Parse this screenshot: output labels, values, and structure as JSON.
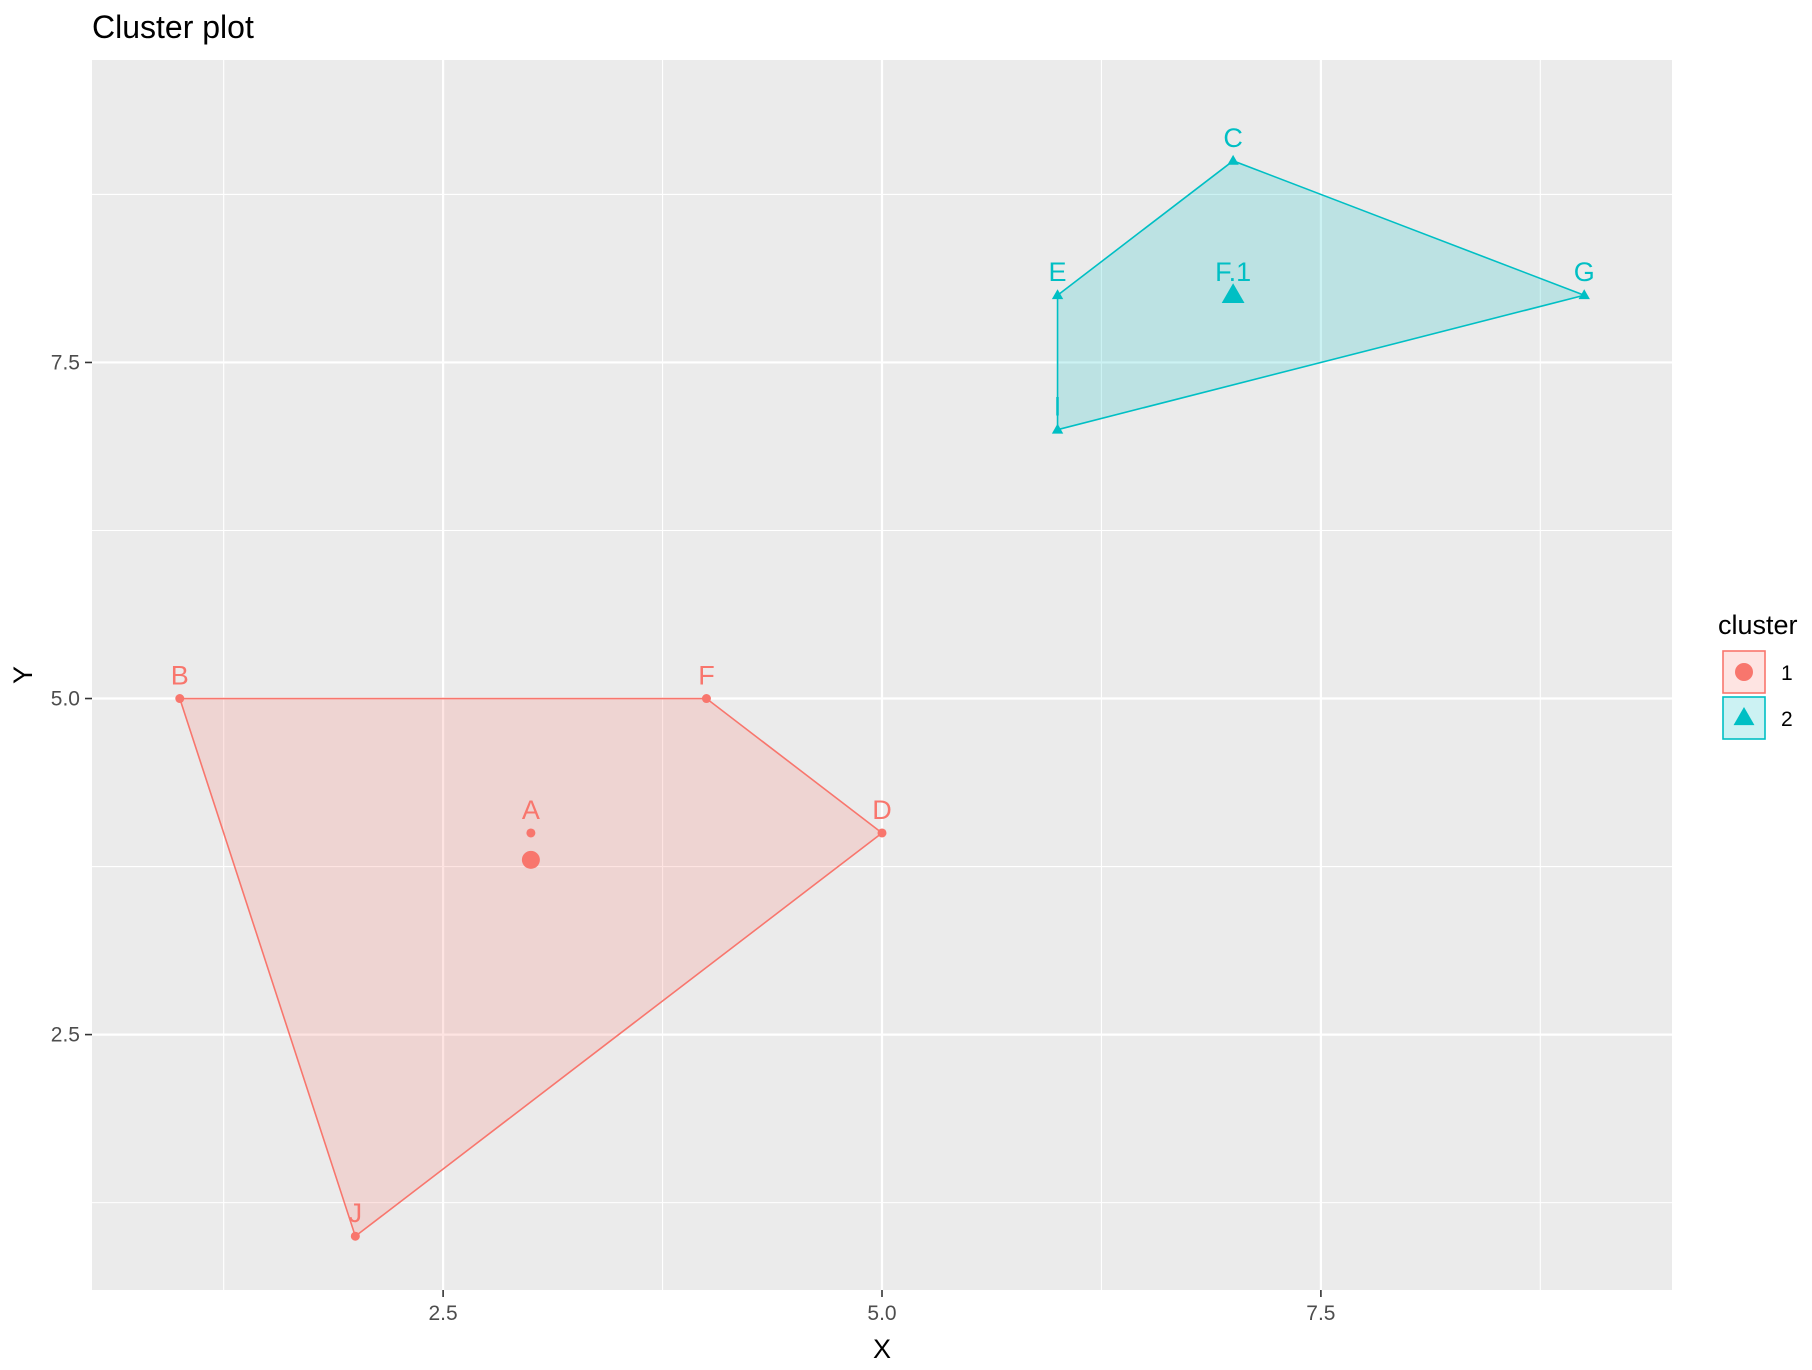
{
  "chart_data": {
    "type": "scatter",
    "title": "Cluster plot",
    "xlabel": "X",
    "ylabel": "Y",
    "xlim": [
      0.5,
      9.5
    ],
    "ylim": [
      0.6,
      9.75
    ],
    "x_ticks": [
      2.5,
      5.0,
      7.5
    ],
    "x_tick_labels": [
      "2.5",
      "5.0",
      "7.5"
    ],
    "x_minor": [
      1.25,
      3.75,
      6.25,
      8.75
    ],
    "y_ticks": [
      2.5,
      5.0,
      7.5
    ],
    "y_tick_labels": [
      "2.5",
      "5.0",
      "7.5"
    ],
    "y_minor": [
      1.25,
      3.75,
      6.25,
      8.75
    ],
    "grid": true,
    "legend": {
      "title": "cluster",
      "position": "right",
      "entries": [
        {
          "label": "1",
          "color": "#F8766D",
          "shape": "circle"
        },
        {
          "label": "2",
          "color": "#00BFC4",
          "shape": "triangle"
        }
      ]
    },
    "series": [
      {
        "cluster": "1",
        "color": "#F8766D",
        "shape": "circle",
        "points": [
          {
            "label": "A",
            "x": 3,
            "y": 4
          },
          {
            "label": "B",
            "x": 1,
            "y": 5
          },
          {
            "label": "D",
            "x": 5,
            "y": 4
          },
          {
            "label": "F",
            "x": 4,
            "y": 5
          },
          {
            "label": "J",
            "x": 2,
            "y": 1
          }
        ],
        "hull": [
          [
            1,
            5
          ],
          [
            4,
            5
          ],
          [
            5,
            4
          ],
          [
            2,
            1
          ]
        ],
        "centroid": {
          "x": 3,
          "y": 3.8
        }
      },
      {
        "cluster": "2",
        "color": "#00BFC4",
        "shape": "triangle",
        "points": [
          {
            "label": "C",
            "x": 7,
            "y": 9
          },
          {
            "label": "E",
            "x": 6,
            "y": 8
          },
          {
            "label": "G",
            "x": 9,
            "y": 8
          },
          {
            "label": "I",
            "x": 6,
            "y": 7
          },
          {
            "label": "F.1",
            "x": 7,
            "y": 8
          }
        ],
        "hull": [
          [
            6,
            8
          ],
          [
            7,
            9
          ],
          [
            9,
            8
          ],
          [
            6,
            7
          ]
        ],
        "centroid": {
          "x": 7,
          "y": 8
        }
      }
    ]
  }
}
